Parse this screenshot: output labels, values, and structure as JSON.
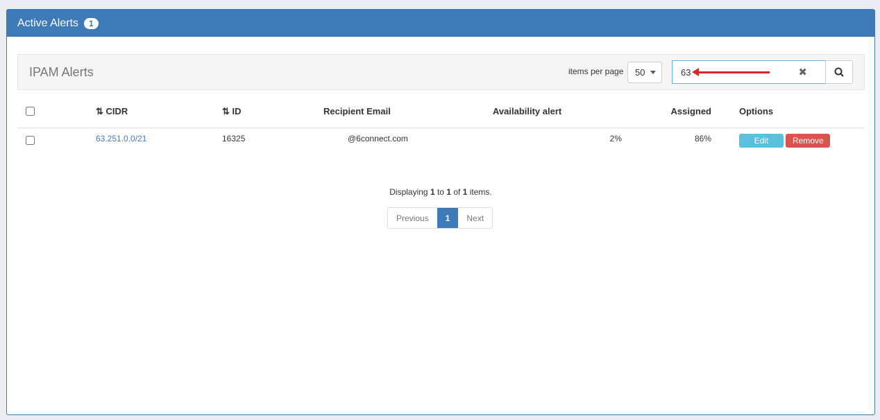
{
  "panel": {
    "title": "Active Alerts",
    "count": "1"
  },
  "toolbar": {
    "title": "IPAM Alerts",
    "items_per_page_label": "items per page",
    "items_per_page": "50",
    "search_value": "63"
  },
  "table": {
    "headers": [
      "CIDR",
      "ID",
      "Recipient Email",
      "Availability alert",
      "Assigned",
      "Options"
    ],
    "rows": [
      {
        "cidr": "63.251.0.0/21",
        "id": "16325",
        "email": "@6connect.com",
        "availability": "2%",
        "assigned": "86%"
      }
    ],
    "edit_label": "Edit",
    "remove_label": "Remove"
  },
  "footer": {
    "pre": "Displaying ",
    "from": "1",
    "to_text": " to ",
    "to": "1",
    "of_text": " of ",
    "total": "1",
    "post": " items."
  },
  "pagination": {
    "previous": "Previous",
    "page": "1",
    "next": "Next"
  },
  "colors": {
    "primary": "#3f7ab8",
    "edit": "#5bc0de",
    "remove": "#d9534f"
  }
}
